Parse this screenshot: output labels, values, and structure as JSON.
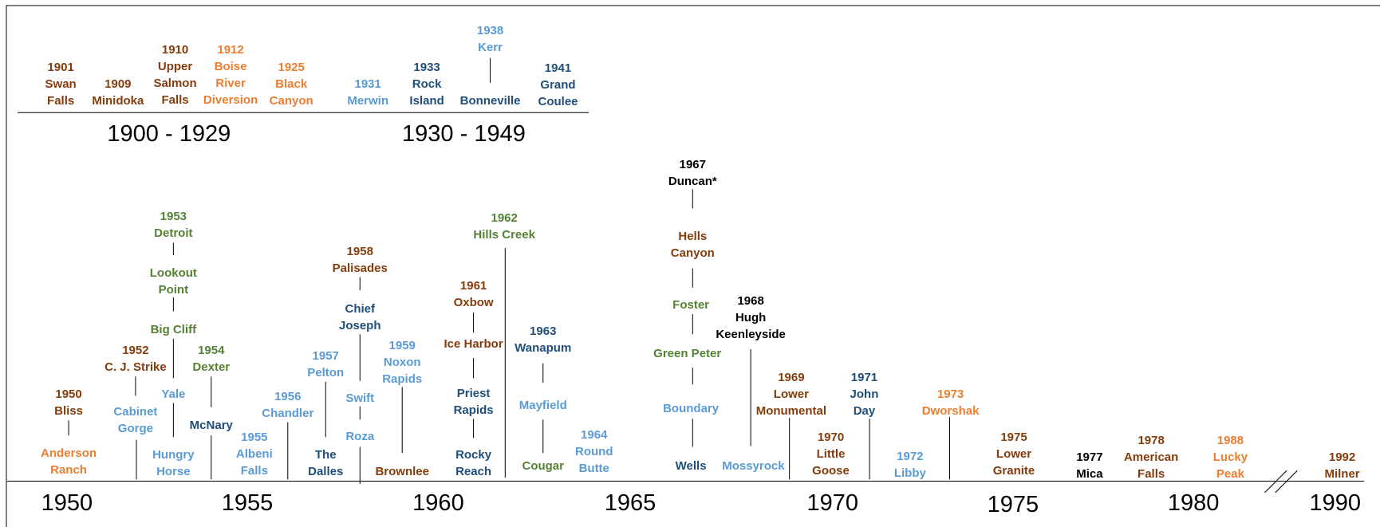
{
  "eras": [
    "1900 - 1929",
    "1930 - 1949"
  ],
  "axis_labels": [
    "1950",
    "1955",
    "1960",
    "1965",
    "1970",
    "1975",
    "1980",
    "1990"
  ],
  "dams": [
    {
      "lines": [
        "1901",
        "Swan",
        "Falls"
      ],
      "color": "#843c0c"
    },
    {
      "lines": [
        "1909",
        "Minidoka"
      ],
      "color": "#843c0c"
    },
    {
      "lines": [
        "1910",
        "Upper",
        "Salmon",
        "Falls"
      ],
      "color": "#843c0c"
    },
    {
      "lines": [
        "1912",
        "Boise",
        "River",
        "Diversion"
      ],
      "color": "#ed7d31"
    },
    {
      "lines": [
        "1925",
        "Black",
        "Canyon"
      ],
      "color": "#ed7d31"
    },
    {
      "lines": [
        "1931",
        "Merwin"
      ],
      "color": "#5b9bd5"
    },
    {
      "lines": [
        "1933",
        "Rock",
        "Island"
      ],
      "color": "#1f4e79"
    },
    {
      "lines": [
        "1938",
        "Kerr"
      ],
      "color": "#5b9bd5"
    },
    {
      "lines": [
        "Bonneville"
      ],
      "color": "#1f4e79"
    },
    {
      "lines": [
        "1941",
        "Grand",
        "Coulee"
      ],
      "color": "#1f4e79"
    },
    {
      "lines": [
        "1950",
        "Bliss"
      ],
      "color": "#843c0c"
    },
    {
      "lines": [
        "Anderson",
        "Ranch"
      ],
      "color": "#ed7d31"
    },
    {
      "lines": [
        "1952",
        "C. J. Strike"
      ],
      "color": "#843c0c"
    },
    {
      "lines": [
        "Cabinet",
        "Gorge"
      ],
      "color": "#5b9bd5"
    },
    {
      "lines": [
        "1953",
        "Detroit"
      ],
      "color": "#548235"
    },
    {
      "lines": [
        "Lookout",
        "Point"
      ],
      "color": "#548235"
    },
    {
      "lines": [
        "Big Cliff"
      ],
      "color": "#548235"
    },
    {
      "lines": [
        "Yale"
      ],
      "color": "#5b9bd5"
    },
    {
      "lines": [
        "Hungry",
        "Horse"
      ],
      "color": "#5b9bd5"
    },
    {
      "lines": [
        "1954",
        "Dexter"
      ],
      "color": "#548235"
    },
    {
      "lines": [
        "McNary"
      ],
      "color": "#1f4e79"
    },
    {
      "lines": [
        "1955",
        "Albeni",
        "Falls"
      ],
      "color": "#5b9bd5"
    },
    {
      "lines": [
        "1956",
        "Chandler"
      ],
      "color": "#5b9bd5"
    },
    {
      "lines": [
        "1957",
        "Pelton"
      ],
      "color": "#5b9bd5"
    },
    {
      "lines": [
        "The",
        "Dalles"
      ],
      "color": "#1f4e79"
    },
    {
      "lines": [
        "1958",
        "Palisades"
      ],
      "color": "#843c0c"
    },
    {
      "lines": [
        "Chief",
        "Joseph"
      ],
      "color": "#1f4e79"
    },
    {
      "lines": [
        "Swift"
      ],
      "color": "#5b9bd5"
    },
    {
      "lines": [
        "Roza"
      ],
      "color": "#5b9bd5"
    },
    {
      "lines": [
        "1959",
        "Noxon",
        "Rapids"
      ],
      "color": "#5b9bd5"
    },
    {
      "lines": [
        "Brownlee"
      ],
      "color": "#843c0c"
    },
    {
      "lines": [
        "1961",
        "Oxbow"
      ],
      "color": "#843c0c"
    },
    {
      "lines": [
        "Ice Harbor"
      ],
      "color": "#843c0c"
    },
    {
      "lines": [
        "Priest",
        "Rapids"
      ],
      "color": "#1f4e79"
    },
    {
      "lines": [
        "Rocky",
        "Reach"
      ],
      "color": "#1f4e79"
    },
    {
      "lines": [
        "1962",
        "Hills Creek"
      ],
      "color": "#548235"
    },
    {
      "lines": [
        "1963",
        "Wanapum"
      ],
      "color": "#1f4e79"
    },
    {
      "lines": [
        "Mayfield"
      ],
      "color": "#5b9bd5"
    },
    {
      "lines": [
        "Cougar"
      ],
      "color": "#548235"
    },
    {
      "lines": [
        "1964",
        "Round",
        "Butte"
      ],
      "color": "#5b9bd5"
    },
    {
      "lines": [
        "1967",
        "Duncan*"
      ],
      "color": "#000000"
    },
    {
      "lines": [
        "Hells",
        "Canyon"
      ],
      "color": "#843c0c"
    },
    {
      "lines": [
        "Foster"
      ],
      "color": "#548235"
    },
    {
      "lines": [
        "Green Peter"
      ],
      "color": "#548235"
    },
    {
      "lines": [
        "Boundary"
      ],
      "color": "#5b9bd5"
    },
    {
      "lines": [
        "Wells"
      ],
      "color": "#1f4e79"
    },
    {
      "lines": [
        "1968",
        "Hugh",
        "Keenleyside"
      ],
      "color": "#000000"
    },
    {
      "lines": [
        "Mossyrock"
      ],
      "color": "#5b9bd5"
    },
    {
      "lines": [
        "1969",
        "Lower",
        "Monumental"
      ],
      "color": "#843c0c"
    },
    {
      "lines": [
        "1970",
        "Little",
        "Goose"
      ],
      "color": "#843c0c"
    },
    {
      "lines": [
        "1971",
        "John",
        "Day"
      ],
      "color": "#1f4e79"
    },
    {
      "lines": [
        "1972",
        "Libby"
      ],
      "color": "#5b9bd5"
    },
    {
      "lines": [
        "1973",
        "Dworshak"
      ],
      "color": "#ed7d31"
    },
    {
      "lines": [
        "1975",
        "Lower",
        "Granite"
      ],
      "color": "#843c0c"
    },
    {
      "lines": [
        "1977",
        "Mica"
      ],
      "color": "#000000"
    },
    {
      "lines": [
        "1978",
        "American",
        "Falls"
      ],
      "color": "#843c0c"
    },
    {
      "lines": [
        "1988",
        "Lucky",
        "Peak"
      ],
      "color": "#ed7d31"
    },
    {
      "lines": [
        "1992",
        "Milner"
      ],
      "color": "#843c0c"
    }
  ]
}
